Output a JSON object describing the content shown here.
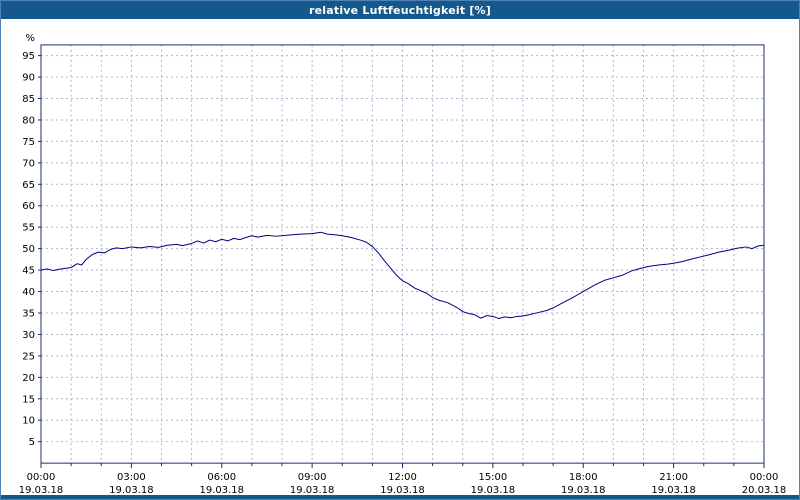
{
  "title": "relative Luftfeuchtigkeit [%]",
  "colors": {
    "titlebar": "#14588c",
    "line": "#000080",
    "grid": "#a8b4cc",
    "plot_border": "#1c2f6e",
    "label_text": "#000000"
  },
  "chart_data": {
    "type": "line",
    "title": "relative Luftfeuchtigkeit [%]",
    "ylabel": "%",
    "xlabel": "",
    "ylim": [
      0,
      97.5
    ],
    "xlim_hours": [
      0,
      24
    ],
    "grid": true,
    "y_ticks": [
      5,
      10,
      15,
      20,
      25,
      30,
      35,
      40,
      45,
      50,
      55,
      60,
      65,
      70,
      75,
      80,
      85,
      90,
      95
    ],
    "x_ticks": [
      {
        "hour": 0,
        "time": "00:00",
        "date": "19.03.18"
      },
      {
        "hour": 3,
        "time": "03:00",
        "date": "19.03.18"
      },
      {
        "hour": 6,
        "time": "06:00",
        "date": "19.03.18"
      },
      {
        "hour": 9,
        "time": "09:00",
        "date": "19.03.18"
      },
      {
        "hour": 12,
        "time": "12:00",
        "date": "19.03.18"
      },
      {
        "hour": 15,
        "time": "15:00",
        "date": "19.03.18"
      },
      {
        "hour": 18,
        "time": "18:00",
        "date": "19.03.18"
      },
      {
        "hour": 21,
        "time": "21:00",
        "date": "19.03.18"
      },
      {
        "hour": 24,
        "time": "00:00",
        "date": "20.03.18"
      }
    ],
    "series": [
      {
        "name": "relative Luftfeuchtigkeit",
        "points": [
          [
            0,
            45.0
          ],
          [
            0.2,
            45.3
          ],
          [
            0.4,
            44.9
          ],
          [
            0.6,
            45.2
          ],
          [
            0.8,
            45.4
          ],
          [
            1.0,
            45.6
          ],
          [
            1.2,
            46.5
          ],
          [
            1.35,
            46.2
          ],
          [
            1.5,
            47.5
          ],
          [
            1.7,
            48.6
          ],
          [
            1.9,
            49.2
          ],
          [
            2.1,
            49.0
          ],
          [
            2.3,
            49.8
          ],
          [
            2.5,
            50.2
          ],
          [
            2.7,
            50.0
          ],
          [
            3.0,
            50.4
          ],
          [
            3.3,
            50.2
          ],
          [
            3.6,
            50.5
          ],
          [
            3.9,
            50.3
          ],
          [
            4.2,
            50.8
          ],
          [
            4.5,
            51.0
          ],
          [
            4.7,
            50.7
          ],
          [
            5.0,
            51.2
          ],
          [
            5.2,
            51.8
          ],
          [
            5.4,
            51.3
          ],
          [
            5.6,
            52.0
          ],
          [
            5.8,
            51.6
          ],
          [
            6.0,
            52.2
          ],
          [
            6.2,
            51.8
          ],
          [
            6.4,
            52.4
          ],
          [
            6.6,
            52.1
          ],
          [
            6.8,
            52.6
          ],
          [
            7.0,
            53.0
          ],
          [
            7.2,
            52.7
          ],
          [
            7.5,
            53.1
          ],
          [
            7.8,
            52.9
          ],
          [
            8.0,
            53.0
          ],
          [
            8.3,
            53.2
          ],
          [
            8.6,
            53.4
          ],
          [
            9.0,
            53.5
          ],
          [
            9.3,
            53.8
          ],
          [
            9.5,
            53.4
          ],
          [
            9.8,
            53.2
          ],
          [
            10.0,
            53.0
          ],
          [
            10.3,
            52.6
          ],
          [
            10.6,
            52.0
          ],
          [
            10.8,
            51.5
          ],
          [
            11.0,
            50.5
          ],
          [
            11.2,
            49.0
          ],
          [
            11.4,
            47.2
          ],
          [
            11.6,
            45.5
          ],
          [
            11.8,
            43.8
          ],
          [
            12.0,
            42.5
          ],
          [
            12.2,
            41.8
          ],
          [
            12.4,
            40.8
          ],
          [
            12.6,
            40.2
          ],
          [
            12.8,
            39.6
          ],
          [
            13.0,
            38.6
          ],
          [
            13.2,
            38.0
          ],
          [
            13.5,
            37.4
          ],
          [
            13.8,
            36.3
          ],
          [
            14.0,
            35.3
          ],
          [
            14.2,
            34.9
          ],
          [
            14.4,
            34.6
          ],
          [
            14.6,
            33.8
          ],
          [
            14.8,
            34.4
          ],
          [
            15.0,
            34.2
          ],
          [
            15.2,
            33.7
          ],
          [
            15.4,
            34.1
          ],
          [
            15.6,
            33.9
          ],
          [
            15.8,
            34.2
          ],
          [
            16.0,
            34.3
          ],
          [
            16.2,
            34.6
          ],
          [
            16.5,
            35.1
          ],
          [
            16.8,
            35.6
          ],
          [
            17.0,
            36.2
          ],
          [
            17.3,
            37.3
          ],
          [
            17.6,
            38.4
          ],
          [
            17.9,
            39.6
          ],
          [
            18.1,
            40.4
          ],
          [
            18.4,
            41.6
          ],
          [
            18.7,
            42.6
          ],
          [
            19.0,
            43.2
          ],
          [
            19.3,
            43.8
          ],
          [
            19.6,
            44.8
          ],
          [
            19.9,
            45.4
          ],
          [
            20.2,
            45.9
          ],
          [
            20.5,
            46.2
          ],
          [
            20.8,
            46.4
          ],
          [
            21.0,
            46.6
          ],
          [
            21.3,
            47.0
          ],
          [
            21.6,
            47.6
          ],
          [
            21.9,
            48.1
          ],
          [
            22.2,
            48.6
          ],
          [
            22.5,
            49.2
          ],
          [
            22.8,
            49.6
          ],
          [
            23.1,
            50.1
          ],
          [
            23.4,
            50.4
          ],
          [
            23.6,
            50.0
          ],
          [
            23.8,
            50.6
          ],
          [
            24,
            50.8
          ]
        ]
      }
    ]
  }
}
